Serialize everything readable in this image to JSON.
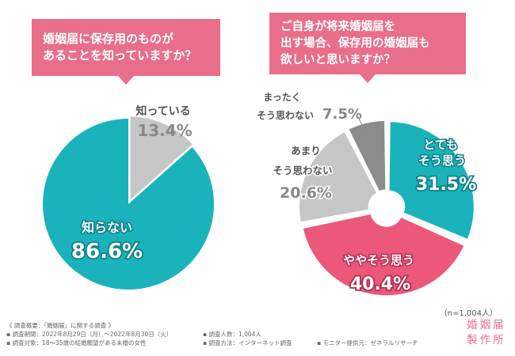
{
  "questions": {
    "q1_line1": "婚姻届に保存用のものが",
    "q1_line2": "あることを知っていますか？",
    "q2_line1": "ご自身が将来婚姻届を",
    "q2_line2": "出す場合、保存用の婚姻届も",
    "q2_line3": "欲しいと思いますか？"
  },
  "chart_data": [
    {
      "type": "pie",
      "question": "婚姻届に保存用のものがあることを知っていますか？",
      "slices": [
        {
          "label": "知らない",
          "value": 86.6,
          "display": "86.6%",
          "color": "#1bb3bb"
        },
        {
          "label": "知っている",
          "value": 13.4,
          "display": "13.4%",
          "color": "#c6c6c6"
        }
      ]
    },
    {
      "type": "donut",
      "question": "ご自身が将来婚姻届を出す場合、保存用の婚姻届も欲しいと思いますか？",
      "slices": [
        {
          "label": "とても そう思う",
          "lines": [
            "とても",
            "そう思う"
          ],
          "value": 31.5,
          "display": "31.5%",
          "color": "#1bb3bb"
        },
        {
          "label": "ややそう思う",
          "lines": [
            "ややそう思う"
          ],
          "value": 40.4,
          "display": "40.4%",
          "color": "#eb587a"
        },
        {
          "label": "あまり そう思わない",
          "lines": [
            "あまり",
            "そう思わない"
          ],
          "value": 20.6,
          "display": "20.6%",
          "color": "#c6c6c6"
        },
        {
          "label": "まったく そう思わない",
          "lines": [
            "まったく",
            "そう思わない"
          ],
          "value": 7.5,
          "display": "7.5%",
          "color": "#8c8c8c"
        }
      ]
    }
  ],
  "sample_size": "（n=1,004人）",
  "survey": {
    "overview": "《 調査概要：「婚姻届」に関する調査 》",
    "period": "▪ 調査期間：2022年8月29日（月）～2022年8月30日（火）",
    "count": "▪ 調査人数：1,004人",
    "target": "▪ 調査対象：18～35歳の結婚願望がある未婚の女性",
    "method": "▪ 調査方法：インターネット調査",
    "provider": "▪ モニター提供元：ゼネラルリサーチ"
  },
  "logo": {
    "line1": "婚姻届",
    "line2": "製作所"
  }
}
